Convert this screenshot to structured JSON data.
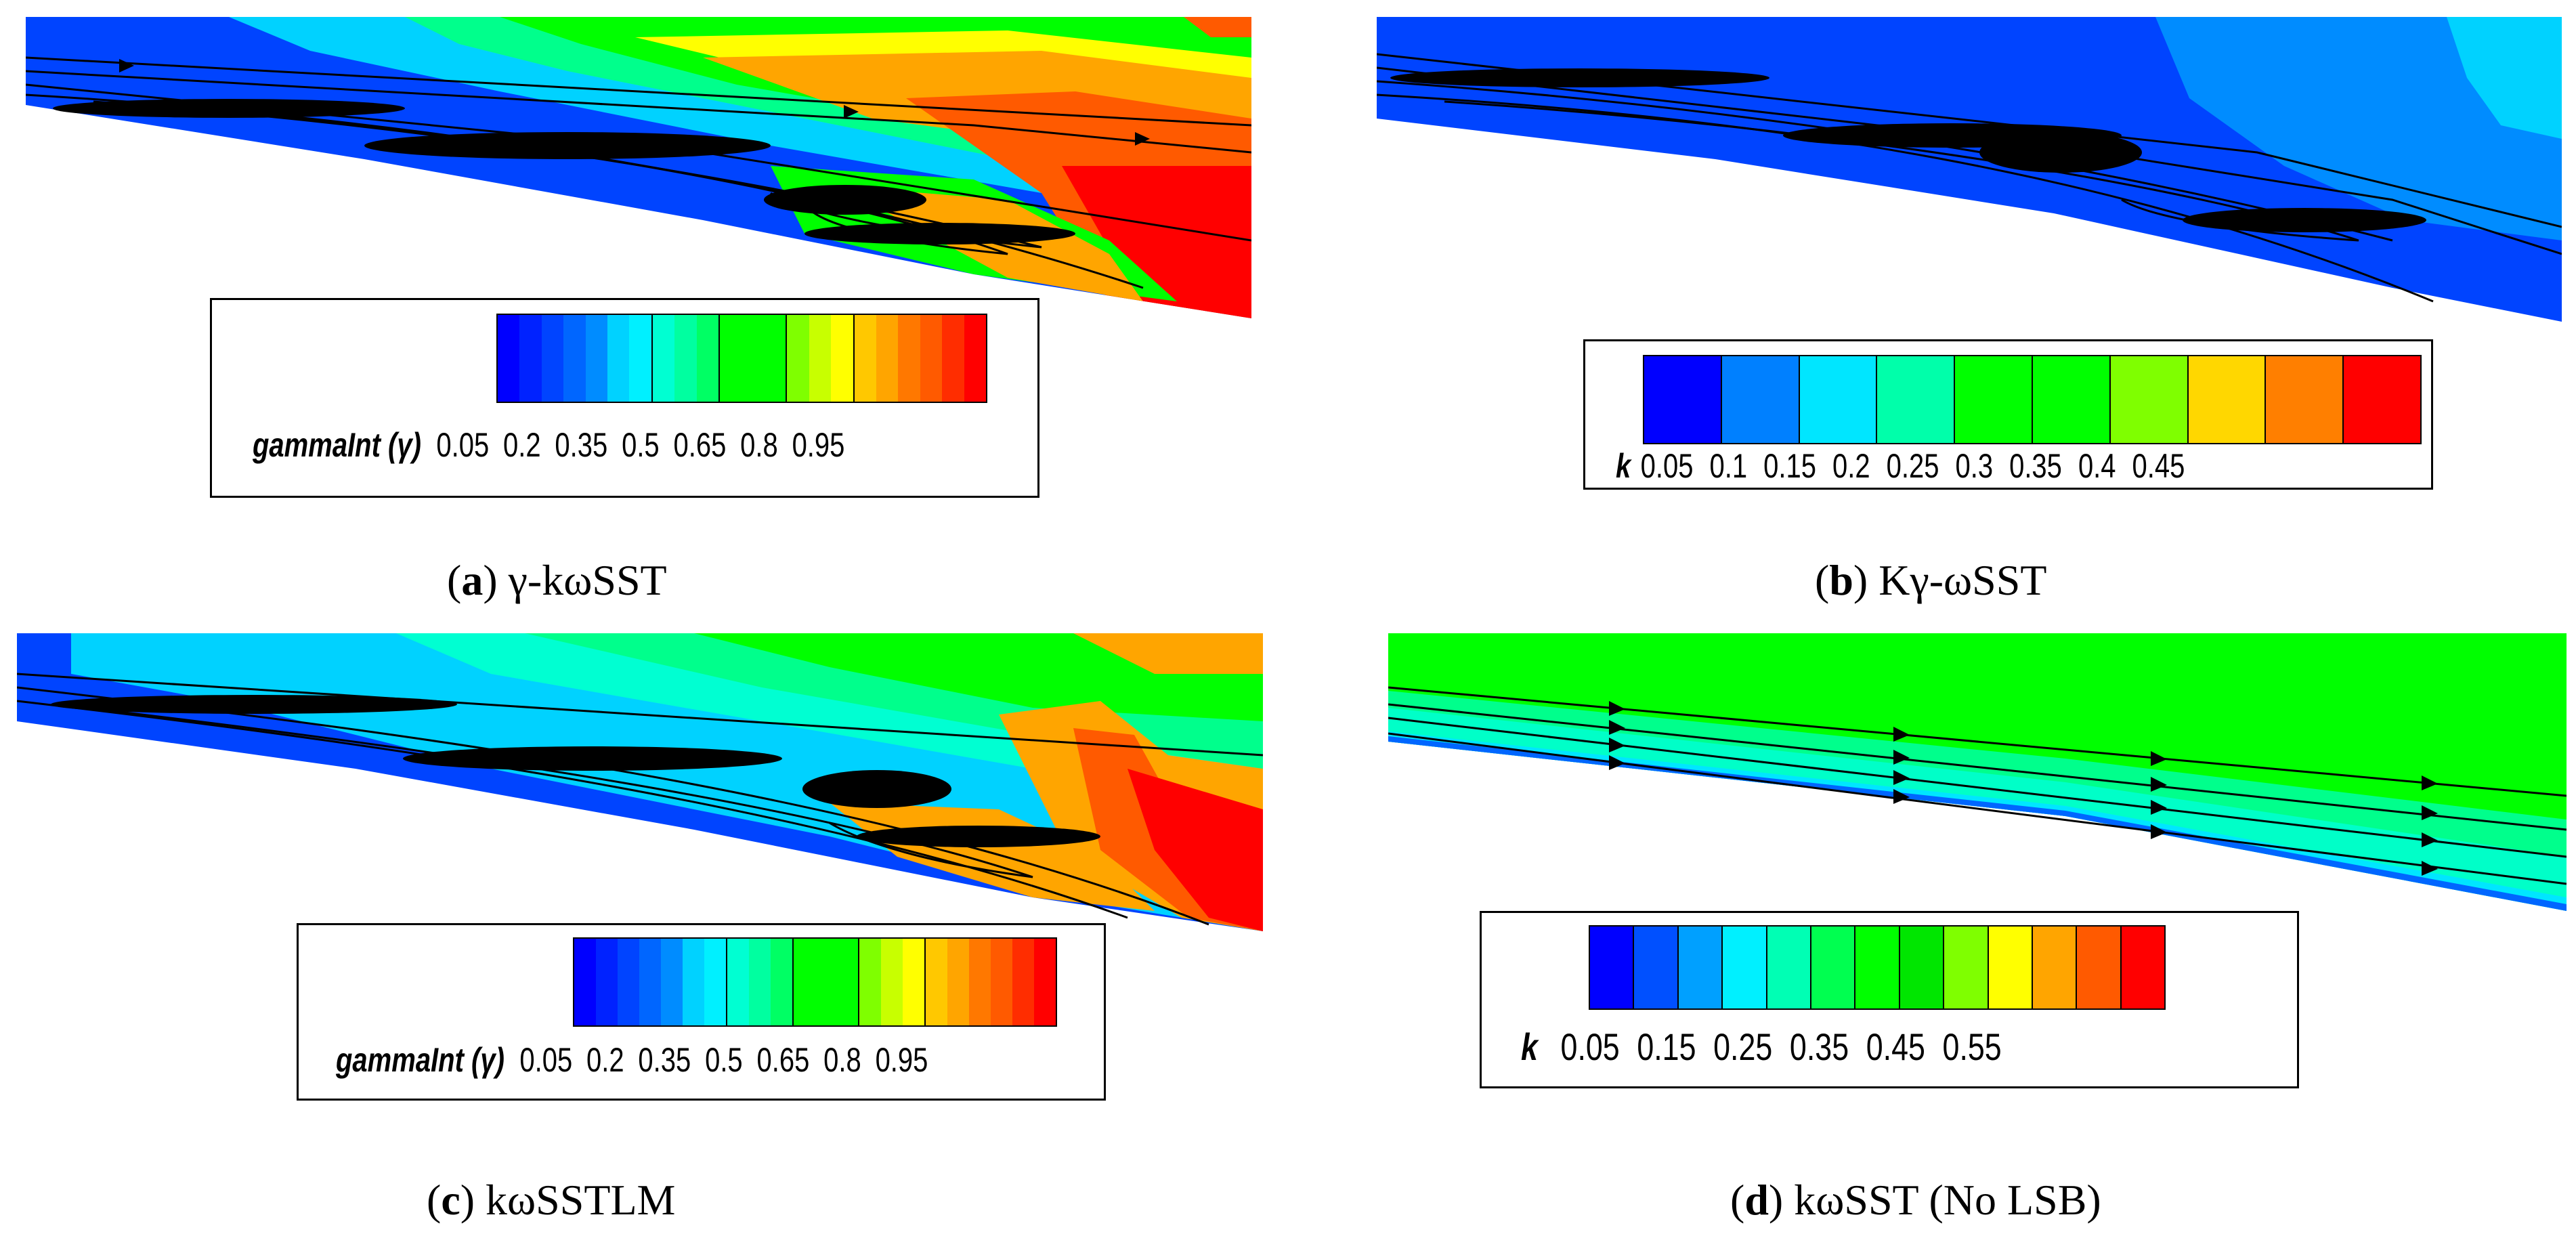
{
  "colors": {
    "contour": [
      "#0000ff",
      "#0044ff",
      "#008cff",
      "#00d2ff",
      "#00e6c8",
      "#00ff8c",
      "#00ff00",
      "#7fff00",
      "#ffff00",
      "#ffa500",
      "#ff5a00",
      "#ff0000"
    ],
    "streamline": "#000000"
  },
  "panels": [
    {
      "id": "a",
      "legend": {
        "title": "gammaInt (γ)",
        "ticks": [
          "0.05",
          "0.2",
          "0.35",
          "0.5",
          "0.65",
          "0.8",
          "0.95"
        ]
      },
      "caption": {
        "letter": "a",
        "model": "γ-kωSST"
      }
    },
    {
      "id": "b",
      "legend": {
        "title": "k",
        "ticks": [
          "0.05",
          "0.1",
          "0.15",
          "0.2",
          "0.25",
          "0.3",
          "0.35",
          "0.4",
          "0.45"
        ]
      },
      "caption": {
        "letter": "b",
        "model": "Kγ-ωSST"
      }
    },
    {
      "id": "c",
      "legend": {
        "title": "gammaInt (γ)",
        "ticks": [
          "0.05",
          "0.2",
          "0.35",
          "0.5",
          "0.65",
          "0.8",
          "0.95"
        ]
      },
      "caption": {
        "letter": "c",
        "model": "kωSSTLM"
      }
    },
    {
      "id": "d",
      "legend": {
        "title": "k",
        "ticks": [
          "0.05",
          "0.15",
          "0.25",
          "0.35",
          "0.45",
          "0.55"
        ]
      },
      "caption": {
        "letter": "d",
        "model": "kωSST (No LSB)"
      }
    }
  ]
}
